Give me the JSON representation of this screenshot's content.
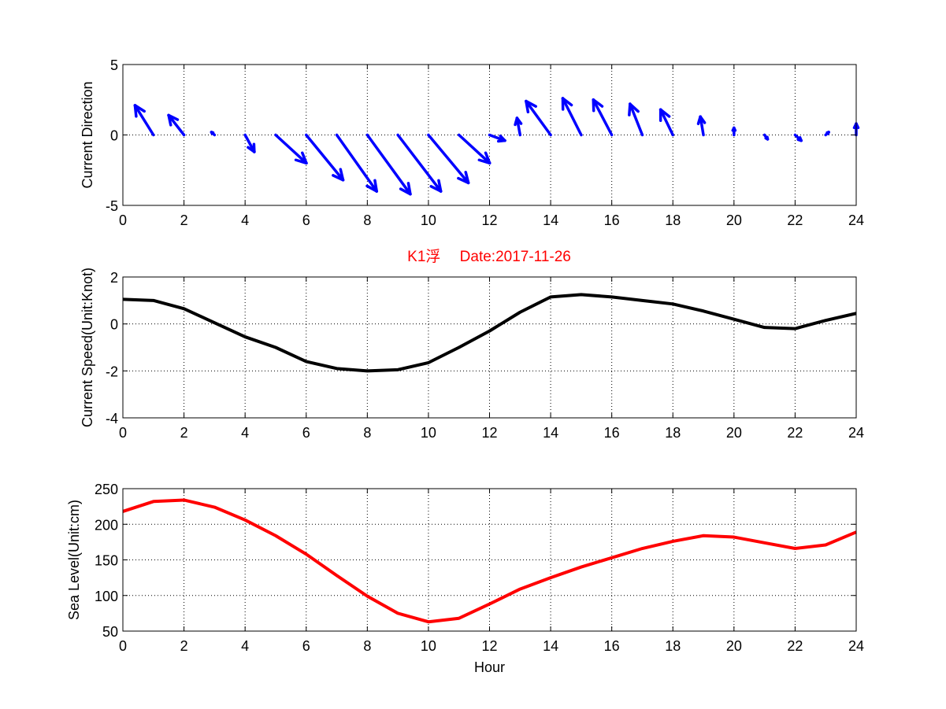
{
  "figure": {
    "title": "K1浮　 Date:2017-11-26",
    "title_color": "#ff0000"
  },
  "chart_data": [
    {
      "type": "quiver",
      "ylabel": "Current Direction",
      "xlabel": "",
      "xlim": [
        0,
        24
      ],
      "ylim": [
        -5,
        5
      ],
      "xticks": [
        "0",
        "2",
        "4",
        "6",
        "8",
        "10",
        "12",
        "14",
        "16",
        "18",
        "20",
        "22",
        "24"
      ],
      "yticks": [
        "-5",
        "0",
        "5"
      ],
      "grid": "dotted",
      "color": "#0000ff",
      "arrows": [
        {
          "x": 1,
          "u": -0.6,
          "v": 2.1
        },
        {
          "x": 2,
          "u": -0.5,
          "v": 1.4
        },
        {
          "x": 3,
          "u": -0.1,
          "v": 0.2
        },
        {
          "x": 4,
          "u": 0.3,
          "v": -1.2
        },
        {
          "x": 5,
          "u": 1.0,
          "v": -2.0
        },
        {
          "x": 6,
          "u": 1.2,
          "v": -3.2
        },
        {
          "x": 7,
          "u": 1.3,
          "v": -4.0
        },
        {
          "x": 8,
          "u": 1.4,
          "v": -4.2
        },
        {
          "x": 9,
          "u": 1.4,
          "v": -4.0
        },
        {
          "x": 10,
          "u": 1.3,
          "v": -3.4
        },
        {
          "x": 11,
          "u": 1.0,
          "v": -2.0
        },
        {
          "x": 12,
          "u": 0.5,
          "v": -0.4
        },
        {
          "x": 13,
          "u": -0.1,
          "v": 1.2
        },
        {
          "x": 14,
          "u": -0.8,
          "v": 2.4
        },
        {
          "x": 15,
          "u": -0.6,
          "v": 2.6
        },
        {
          "x": 16,
          "u": -0.6,
          "v": 2.5
        },
        {
          "x": 17,
          "u": -0.4,
          "v": 2.2
        },
        {
          "x": 18,
          "u": -0.4,
          "v": 1.8
        },
        {
          "x": 19,
          "u": -0.1,
          "v": 1.3
        },
        {
          "x": 20,
          "u": 0.0,
          "v": 0.5
        },
        {
          "x": 21,
          "u": 0.1,
          "v": -0.3
        },
        {
          "x": 22,
          "u": 0.2,
          "v": -0.4
        },
        {
          "x": 23,
          "u": 0.1,
          "v": 0.2
        },
        {
          "x": 24,
          "u": 0.0,
          "v": 0.8
        }
      ]
    },
    {
      "type": "line",
      "ylabel": "Current Speed(Unit:Knot)",
      "xlabel": "",
      "xlim": [
        0,
        24
      ],
      "ylim": [
        -4,
        2
      ],
      "xticks": [
        "0",
        "2",
        "4",
        "6",
        "8",
        "10",
        "12",
        "14",
        "16",
        "18",
        "20",
        "22",
        "24"
      ],
      "yticks": [
        "-4",
        "-2",
        "0",
        "2"
      ],
      "grid": "dotted",
      "color": "#000000",
      "x": [
        0,
        1,
        2,
        3,
        4,
        5,
        6,
        7,
        8,
        9,
        10,
        11,
        12,
        13,
        14,
        15,
        16,
        17,
        18,
        19,
        20,
        21,
        22,
        23,
        24
      ],
      "y": [
        1.05,
        1.0,
        0.65,
        0.05,
        -0.55,
        -1.0,
        -1.6,
        -1.9,
        -2.0,
        -1.95,
        -1.65,
        -1.0,
        -0.3,
        0.5,
        1.15,
        1.25,
        1.15,
        1.0,
        0.85,
        0.55,
        0.2,
        -0.15,
        -0.2,
        0.15,
        0.45
      ]
    },
    {
      "type": "line",
      "ylabel": "Sea Level(Unit:cm)",
      "xlabel": "Hour",
      "xlim": [
        0,
        24
      ],
      "ylim": [
        50,
        250
      ],
      "xticks": [
        "0",
        "2",
        "4",
        "6",
        "8",
        "10",
        "12",
        "14",
        "16",
        "18",
        "20",
        "22",
        "24"
      ],
      "yticks": [
        "50",
        "100",
        "150",
        "200",
        "250"
      ],
      "grid": "dotted",
      "color": "#ff0000",
      "x": [
        0,
        1,
        2,
        3,
        4,
        5,
        6,
        7,
        8,
        9,
        10,
        11,
        12,
        13,
        14,
        15,
        16,
        17,
        18,
        19,
        20,
        21,
        22,
        23,
        24
      ],
      "y": [
        218,
        232,
        234,
        224,
        206,
        184,
        158,
        128,
        99,
        75,
        63,
        68,
        88,
        109,
        125,
        140,
        153,
        166,
        176,
        184,
        182,
        174,
        166,
        171,
        189
      ]
    }
  ]
}
